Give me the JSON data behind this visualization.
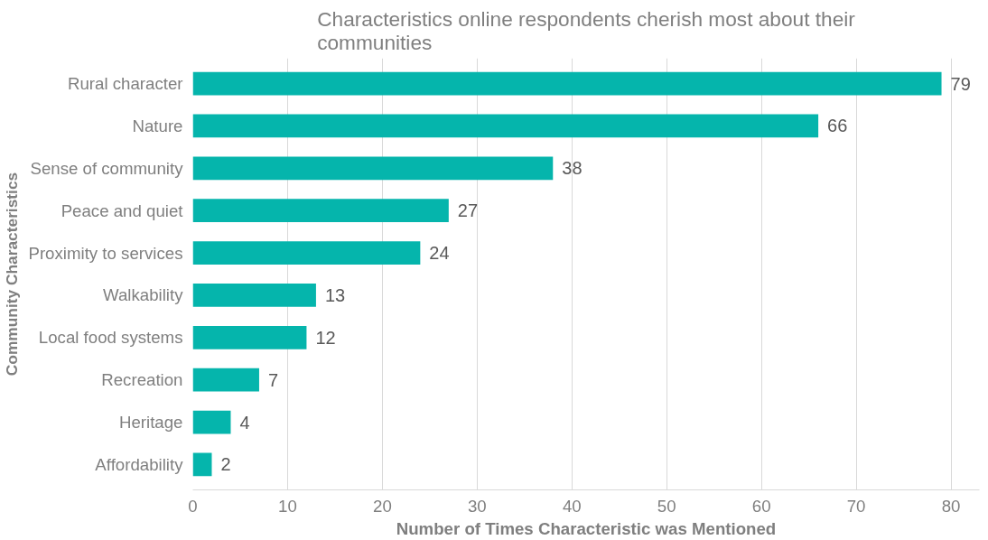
{
  "chart_data": {
    "type": "bar",
    "orientation": "horizontal",
    "title": "Characteristics online respondents cherish most about their communities",
    "xlabel": "Number of Times Characteristic was Mentioned",
    "ylabel": "Community Characteristics",
    "categories": [
      "Rural character",
      "Nature",
      "Sense of community",
      "Peace and quiet",
      "Proximity to services",
      "Walkability",
      "Local food systems",
      "Recreation",
      "Heritage",
      "Affordability"
    ],
    "values": [
      79,
      66,
      38,
      27,
      24,
      13,
      12,
      7,
      4,
      2
    ],
    "color": "#05b5ac",
    "xlim": [
      0,
      83
    ],
    "xticks": [
      0,
      10,
      20,
      30,
      40,
      50,
      60,
      70,
      80
    ],
    "grid": "x",
    "data_labels": true
  }
}
